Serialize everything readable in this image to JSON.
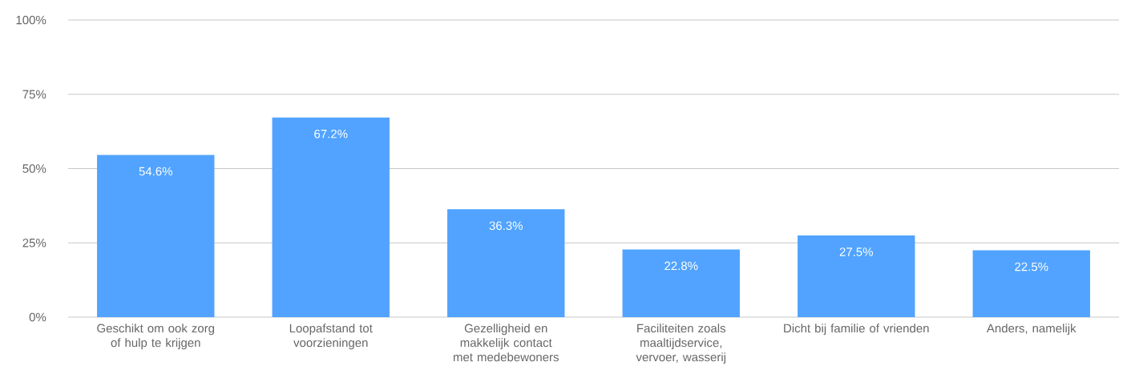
{
  "chart_data": {
    "type": "bar",
    "categories": [
      "Geschikt om ook zorg of hulp te krijgen",
      "Loopafstand tot voorzieningen",
      "Gezelligheid en makkelijk contact met medebewoners",
      "Faciliteiten zoals maaltijdservice, vervoer, wasserij",
      "Dicht bij familie of vrienden",
      "Anders, namelijk"
    ],
    "values": [
      54.6,
      67.2,
      36.3,
      22.8,
      27.5,
      22.5
    ],
    "value_labels": [
      "54.6%",
      "67.2%",
      "36.3%",
      "22.8%",
      "27.5%",
      "22.5%"
    ],
    "color": "#51a3ff",
    "ylim": [
      0,
      100
    ],
    "yticks": [
      {
        "value": 0,
        "label": "0%"
      },
      {
        "value": 25,
        "label": "25%"
      },
      {
        "value": 50,
        "label": "50%"
      },
      {
        "value": 75,
        "label": "75%"
      },
      {
        "value": 100,
        "label": "100%"
      }
    ],
    "grid": "y"
  }
}
